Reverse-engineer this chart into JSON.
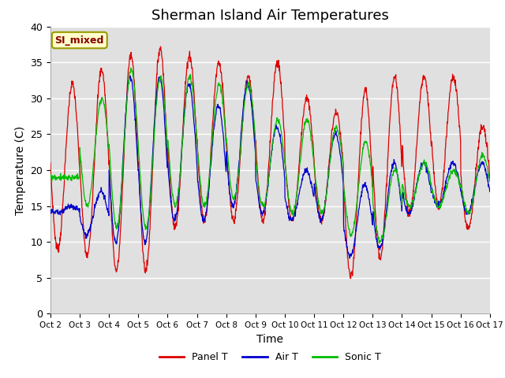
{
  "title": "Sherman Island Air Temperatures",
  "xlabel": "Time",
  "ylabel": "Temperature (C)",
  "ylim": [
    0,
    40
  ],
  "x_tick_labels": [
    "Oct 2",
    "Oct 3",
    "Oct 4",
    "Oct 5",
    "Oct 6",
    "Oct 7",
    "Oct 8",
    "Oct 9",
    "Oct 10",
    "Oct 11",
    "Oct 12",
    "Oct 13",
    "Oct 14",
    "Oct 15",
    "Oct 16",
    "Oct 17"
  ],
  "legend_labels": [
    "Panel T",
    "Air T",
    "Sonic T"
  ],
  "panel_color": "#dd0000",
  "air_color": "#0000cc",
  "sonic_color": "#00bb00",
  "bg_color": "#e0e0e0",
  "annotation_text": "SI_mixed",
  "annotation_bg": "#ffffcc",
  "annotation_border": "#999900",
  "annotation_textcolor": "#880000",
  "title_fontsize": 13,
  "axis_label_fontsize": 10,
  "panel_peaks": [
    32,
    34,
    36,
    37,
    36,
    35,
    33,
    35,
    30,
    28,
    31,
    33,
    33,
    33,
    26,
    12
  ],
  "panel_lows": [
    9,
    8,
    6,
    6,
    12,
    13,
    13,
    13,
    13,
    13,
    5,
    8,
    14,
    15,
    12,
    12
  ],
  "air_peaks": [
    15,
    17,
    33,
    33,
    32,
    29,
    32,
    26,
    20,
    25,
    18,
    21,
    21,
    21,
    21,
    19
  ],
  "air_lows": [
    14,
    11,
    10,
    10,
    13,
    13,
    15,
    14,
    13,
    13,
    8,
    9,
    14,
    15,
    14,
    12
  ],
  "sonic_peaks": [
    19,
    30,
    34,
    33,
    33,
    32,
    32,
    27,
    27,
    26,
    24,
    20,
    21,
    20,
    22,
    19
  ],
  "sonic_lows": [
    19,
    15,
    12,
    12,
    15,
    15,
    16,
    15,
    14,
    14,
    11,
    10,
    15,
    15,
    14,
    14
  ]
}
